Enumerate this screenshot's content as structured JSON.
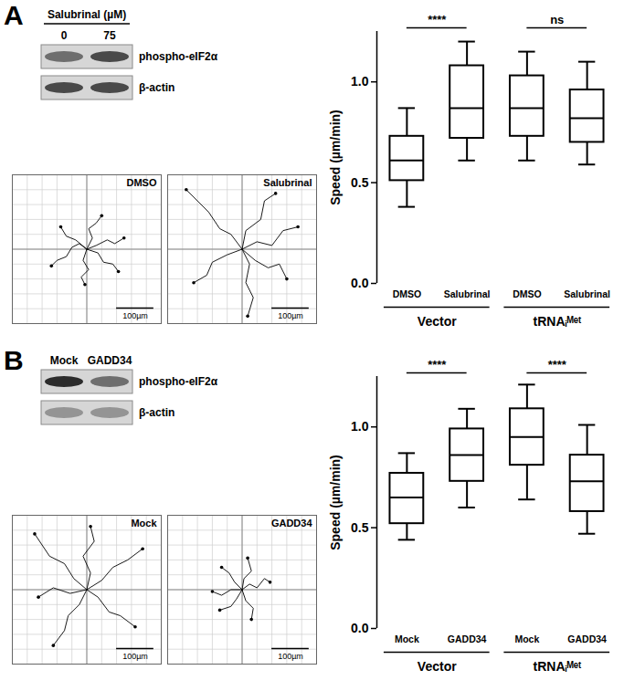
{
  "figure": {
    "panel_labels": [
      "A",
      "B"
    ],
    "blots": [
      {
        "header": "Salubrinal (µM)",
        "lanes": [
          "0",
          "75"
        ],
        "rows": [
          {
            "label": "phospho-eIF2α",
            "intensities": [
              0.55,
              0.75
            ]
          },
          {
            "label": "β-actin",
            "intensities": [
              0.75,
              0.75
            ]
          }
        ]
      },
      {
        "lanes": [
          "Mock",
          "GADD34"
        ],
        "rows": [
          {
            "label": "phospho-eIF2α",
            "intensities": [
              0.9,
              0.55
            ]
          },
          {
            "label": "β-actin",
            "intensities": [
              0.35,
              0.35
            ]
          }
        ]
      }
    ]
  },
  "chart_data": [
    {
      "type": "box",
      "y_label": "Speed (µm/min)",
      "color": "#000000",
      "categories": [
        "DMSO",
        "Salubrinal",
        "DMSO",
        "Salubrinal"
      ],
      "group": [
        "Vector",
        "Vector",
        "tRNAᵢᴹᵉᵗ",
        "tRNAᵢᴹᵉᵗ"
      ],
      "comparisons": [
        "****",
        "ns"
      ],
      "ylim": [
        0,
        1.25
      ],
      "yticks": [
        {
          "value": 0,
          "label": "0.0"
        },
        {
          "value": 0.5,
          "label": "0.5"
        },
        {
          "value": 1,
          "label": "1.0"
        }
      ],
      "stats": {
        "min": [
          0.38,
          0.61,
          0.61,
          0.59
        ],
        "q1": [
          0.51,
          0.72,
          0.73,
          0.7
        ],
        "median": [
          0.61,
          0.87,
          0.87,
          0.82
        ],
        "q3": [
          0.73,
          1.08,
          1.03,
          0.96
        ],
        "max": [
          0.87,
          1.2,
          1.15,
          1.1
        ]
      }
    },
    {
      "type": "line",
      "title": "DMSO",
      "color": "#000000",
      "marker": "circle",
      "grid": true,
      "tick_labels": false,
      "xlim": [
        -200,
        200
      ],
      "ylim": [
        -200,
        200
      ],
      "xticks": [
        -200,
        -160,
        -120,
        -80,
        -40,
        0,
        40,
        80,
        120,
        160,
        200
      ],
      "yticks": [
        -200,
        -160,
        -120,
        -80,
        -40,
        0,
        40,
        80,
        120,
        160,
        200
      ],
      "scale_bar": {
        "length": 100,
        "label": "100µm"
      },
      "series": [
        {
          "x": [
            0,
            -20,
            -40,
            -55,
            -80,
            -95
          ],
          "y": [
            0,
            15,
            5,
            -20,
            -30,
            -45
          ]
        },
        {
          "x": [
            0,
            15,
            5,
            25,
            40
          ],
          "y": [
            0,
            30,
            55,
            70,
            90
          ]
        },
        {
          "x": [
            0,
            30,
            45,
            70,
            85
          ],
          "y": [
            0,
            -10,
            -35,
            -40,
            -60
          ]
        },
        {
          "x": [
            0,
            -10,
            5,
            -15,
            -5
          ],
          "y": [
            0,
            -30,
            -55,
            -75,
            -95
          ]
        },
        {
          "x": [
            0,
            -30,
            -55,
            -70
          ],
          "y": [
            0,
            25,
            35,
            60
          ]
        },
        {
          "x": [
            0,
            25,
            55,
            75,
            100
          ],
          "y": [
            0,
            10,
            25,
            15,
            30
          ]
        }
      ]
    },
    {
      "type": "line",
      "title": "Salubrinal",
      "color": "#000000",
      "marker": "circle",
      "grid": true,
      "tick_labels": false,
      "xlim": [
        -200,
        200
      ],
      "ylim": [
        -200,
        200
      ],
      "xticks": [
        -200,
        -160,
        -120,
        -80,
        -40,
        0,
        40,
        80,
        120,
        160,
        200
      ],
      "yticks": [
        -200,
        -160,
        -120,
        -80,
        -40,
        0,
        40,
        80,
        120,
        160,
        200
      ],
      "scale_bar": {
        "length": 100,
        "label": "100µm"
      },
      "series": [
        {
          "x": [
            0,
            -30,
            -60,
            -90,
            -120,
            -150
          ],
          "y": [
            0,
            40,
            55,
            100,
            130,
            160
          ]
        },
        {
          "x": [
            0,
            20,
            10,
            30,
            15
          ],
          "y": [
            0,
            -40,
            -90,
            -130,
            -180
          ]
        },
        {
          "x": [
            0,
            40,
            80,
            110,
            150
          ],
          "y": [
            0,
            20,
            10,
            50,
            60
          ]
        },
        {
          "x": [
            0,
            -40,
            -80,
            -95,
            -130
          ],
          "y": [
            0,
            -15,
            -35,
            -70,
            -90
          ]
        },
        {
          "x": [
            0,
            10,
            50,
            60,
            90
          ],
          "y": [
            0,
            50,
            80,
            130,
            150
          ]
        },
        {
          "x": [
            0,
            35,
            70,
            100,
            120
          ],
          "y": [
            0,
            -30,
            -50,
            -40,
            -80
          ]
        }
      ]
    },
    {
      "type": "box",
      "y_label": "Speed (µm/min)",
      "color": "#000000",
      "categories": [
        "Mock",
        "GADD34",
        "Mock",
        "GADD34"
      ],
      "group": [
        "Vector",
        "Vector",
        "tRNAᵢᴹᵉᵗ",
        "tRNAᵢᴹᵉᵗ"
      ],
      "comparisons": [
        "****",
        "****"
      ],
      "ylim": [
        0,
        1.25
      ],
      "yticks": [
        {
          "value": 0,
          "label": "0.0"
        },
        {
          "value": 0.5,
          "label": "0.5"
        },
        {
          "value": 1,
          "label": "1.0"
        }
      ],
      "stats": {
        "min": [
          0.44,
          0.6,
          0.64,
          0.47
        ],
        "q1": [
          0.52,
          0.73,
          0.81,
          0.58
        ],
        "median": [
          0.65,
          0.86,
          0.95,
          0.73
        ],
        "q3": [
          0.77,
          0.99,
          1.09,
          0.86
        ],
        "max": [
          0.87,
          1.09,
          1.21,
          1.01
        ]
      }
    },
    {
      "type": "line",
      "title": "Mock",
      "color": "#000000",
      "marker": "circle",
      "grid": true,
      "tick_labels": false,
      "xlim": [
        -200,
        200
      ],
      "ylim": [
        -200,
        200
      ],
      "xticks": [
        -200,
        -160,
        -120,
        -80,
        -40,
        0,
        40,
        80,
        120,
        160,
        200
      ],
      "yticks": [
        -200,
        -160,
        -120,
        -80,
        -40,
        0,
        40,
        80,
        120,
        160,
        200
      ],
      "scale_bar": {
        "length": 100,
        "label": "100µm"
      },
      "series": [
        {
          "x": [
            0,
            -35,
            -60,
            -100,
            -140
          ],
          "y": [
            0,
            30,
            70,
            90,
            150
          ]
        },
        {
          "x": [
            0,
            30,
            60,
            90,
            130
          ],
          "y": [
            0,
            -20,
            -60,
            -70,
            -100
          ]
        },
        {
          "x": [
            0,
            -20,
            -50,
            -60,
            -90
          ],
          "y": [
            0,
            -40,
            -70,
            -110,
            -150
          ]
        },
        {
          "x": [
            0,
            40,
            70,
            110,
            150
          ],
          "y": [
            0,
            25,
            60,
            80,
            110
          ]
        },
        {
          "x": [
            0,
            10,
            -10,
            20,
            10
          ],
          "y": [
            0,
            45,
            90,
            130,
            170
          ]
        },
        {
          "x": [
            0,
            -45,
            -90,
            -130
          ],
          "y": [
            0,
            -10,
            5,
            -20
          ]
        }
      ]
    },
    {
      "type": "line",
      "title": "GADD34",
      "color": "#000000",
      "marker": "circle",
      "grid": true,
      "tick_labels": false,
      "xlim": [
        -200,
        200
      ],
      "ylim": [
        -200,
        200
      ],
      "xticks": [
        -200,
        -160,
        -120,
        -80,
        -40,
        0,
        40,
        80,
        120,
        160,
        200
      ],
      "yticks": [
        -200,
        -160,
        -120,
        -80,
        -40,
        0,
        40,
        80,
        120,
        160,
        200
      ],
      "scale_bar": {
        "length": 100,
        "label": "100µm"
      },
      "series": [
        {
          "x": [
            0,
            -20,
            -35,
            -55
          ],
          "y": [
            0,
            20,
            45,
            60
          ]
        },
        {
          "x": [
            0,
            20,
            40,
            60,
            75
          ],
          "y": [
            0,
            15,
            5,
            30,
            20
          ]
        },
        {
          "x": [
            0,
            -15,
            -30,
            -60
          ],
          "y": [
            0,
            -25,
            -45,
            -55
          ]
        },
        {
          "x": [
            0,
            10,
            30,
            25
          ],
          "y": [
            0,
            -30,
            -50,
            -80
          ]
        },
        {
          "x": [
            0,
            5,
            25,
            15
          ],
          "y": [
            0,
            30,
            50,
            85
          ]
        },
        {
          "x": [
            0,
            -30,
            -55,
            -80
          ],
          "y": [
            0,
            0,
            -15,
            -5
          ]
        }
      ]
    }
  ]
}
